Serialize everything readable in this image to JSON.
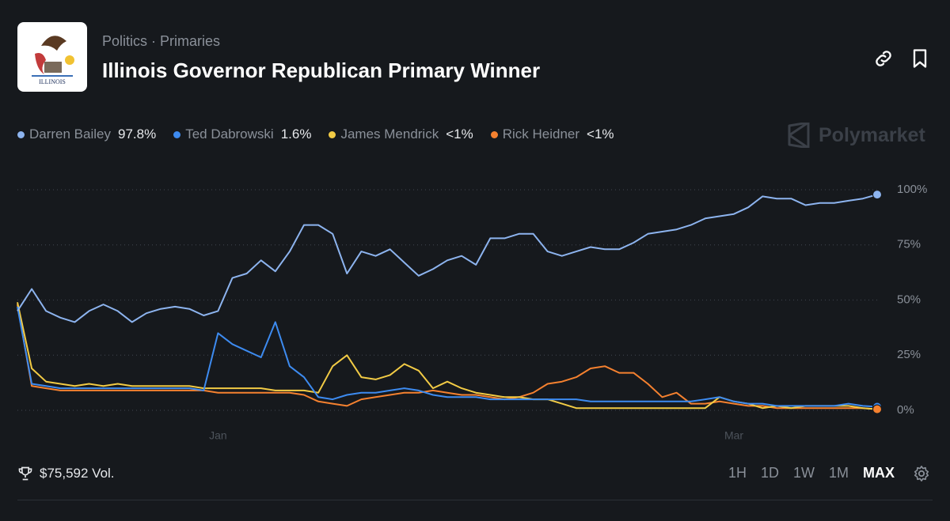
{
  "header": {
    "breadcrumb": [
      "Politics",
      "Primaries"
    ],
    "title": "Illinois Governor Republican Primary Winner",
    "flag_text": "ILLINOIS",
    "brand": "Polymarket"
  },
  "chart_data": {
    "type": "line",
    "categories": [
      null,
      null,
      null,
      null,
      null,
      null,
      null,
      null,
      null,
      null,
      null,
      null,
      null,
      null,
      "Jan",
      null,
      null,
      null,
      null,
      null,
      null,
      null,
      null,
      null,
      null,
      null,
      null,
      null,
      null,
      null,
      null,
      null,
      null,
      null,
      null,
      null,
      null,
      null,
      null,
      null,
      null,
      null,
      null,
      null,
      null,
      null,
      null,
      null,
      null,
      null,
      "Mar",
      null,
      null,
      null,
      null,
      null,
      null,
      null,
      null,
      null,
      null
    ],
    "series": [
      {
        "name": "Darren Bailey",
        "current": "97.8%",
        "color": "#8db4ef",
        "values": [
          45,
          55,
          45,
          42,
          40,
          45,
          48,
          45,
          40,
          44,
          46,
          47,
          46,
          43,
          45,
          60,
          62,
          68,
          63,
          72,
          84,
          84,
          80,
          62,
          72,
          70,
          73,
          67,
          61,
          64,
          68,
          70,
          66,
          78,
          78,
          80,
          80,
          72,
          70,
          72,
          74,
          73,
          73,
          76,
          80,
          81,
          82,
          84,
          87,
          88,
          89,
          92,
          97,
          96,
          96,
          93,
          94,
          94,
          95,
          96,
          97.8
        ]
      },
      {
        "name": "Ted Dabrowski",
        "current": "1.6%",
        "color": "#3d8bf0",
        "values": [
          47,
          12,
          11,
          10,
          10,
          10,
          10,
          10,
          10,
          10,
          10,
          10,
          10,
          9,
          35,
          30,
          27,
          24,
          40,
          20,
          15,
          6,
          5,
          7,
          8,
          8,
          9,
          10,
          9,
          7,
          6,
          6,
          6,
          5,
          5,
          5,
          5,
          5,
          5,
          5,
          4,
          4,
          4,
          4,
          4,
          4,
          4,
          4,
          5,
          6,
          4,
          3,
          3,
          2,
          2,
          2,
          2,
          2,
          3,
          2,
          1.6
        ]
      },
      {
        "name": "James Mendrick",
        "current": "<1%",
        "color": "#f2cb45",
        "values": [
          49,
          19,
          13,
          12,
          11,
          12,
          11,
          12,
          11,
          11,
          11,
          11,
          11,
          10,
          10,
          10,
          10,
          10,
          9,
          9,
          9,
          8,
          20,
          25,
          15,
          14,
          16,
          21,
          18,
          10,
          13,
          10,
          8,
          7,
          6,
          6,
          5,
          5,
          3,
          1,
          1,
          1,
          1,
          1,
          1,
          1,
          1,
          1,
          1,
          6,
          4,
          3,
          1,
          2,
          1,
          2,
          2,
          2,
          2,
          1,
          0.5
        ]
      },
      {
        "name": "Rick Heidner",
        "current": "<1%",
        "color": "#f5812f",
        "values": [
          48,
          11,
          10,
          9,
          9,
          9,
          9,
          9,
          9,
          9,
          9,
          9,
          9,
          9,
          8,
          8,
          8,
          8,
          8,
          8,
          7,
          4,
          3,
          2,
          5,
          6,
          7,
          8,
          8,
          9,
          8,
          7,
          7,
          6,
          5,
          6,
          8,
          12,
          13,
          15,
          19,
          20,
          17,
          17,
          12,
          6,
          8,
          3,
          3,
          4,
          3,
          2,
          2,
          1,
          1,
          1,
          1,
          1,
          1,
          1,
          0.5
        ]
      }
    ],
    "ylim": [
      0,
      100
    ],
    "yticks": [
      {
        "value": 0,
        "label": "0%"
      },
      {
        "value": 25,
        "label": "25%"
      },
      {
        "value": 50,
        "label": "50%"
      },
      {
        "value": 75,
        "label": "75%"
      },
      {
        "value": 100,
        "label": "100%"
      }
    ],
    "grid": true
  },
  "footer": {
    "volume": "$75,592 Vol.",
    "ranges": [
      "1H",
      "1D",
      "1W",
      "1M",
      "MAX"
    ],
    "active_range": 4
  }
}
